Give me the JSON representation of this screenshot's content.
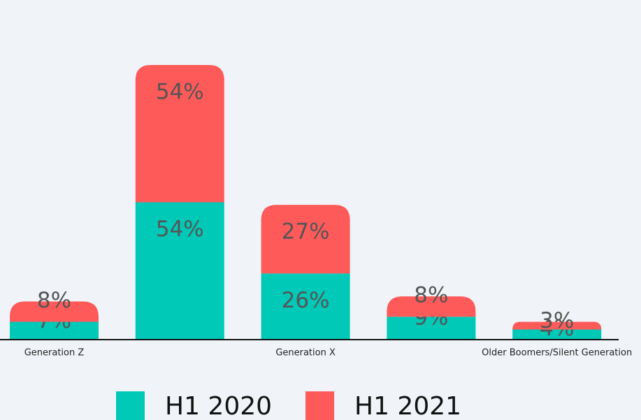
{
  "chart_data": {
    "type": "stacked-bar",
    "categories": [
      "Generation Z",
      null,
      "Generation X",
      null,
      "Older Boomers/Silent Generation"
    ],
    "series": [
      {
        "name": "H1 2020",
        "color": "#00c9b7",
        "values": [
          7,
          54,
          26,
          9,
          4
        ],
        "value_labels": [
          "7%",
          "54%",
          "26%",
          "9%",
          "4%"
        ]
      },
      {
        "name": "H1 2021",
        "color": "#ff5a5a",
        "values": [
          8,
          54,
          27,
          8,
          3
        ],
        "value_labels": [
          "8%",
          "54%",
          "27%",
          "8%",
          "3%"
        ]
      }
    ]
  }
}
